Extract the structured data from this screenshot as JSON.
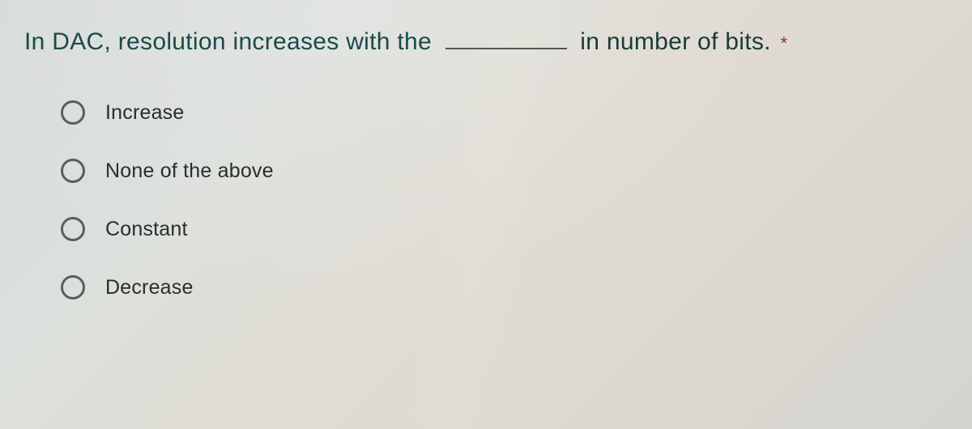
{
  "question": {
    "text_before_blank": "In DAC, resolution increases with the",
    "text_after_blank": "in number of bits.",
    "required_marker": "*",
    "text_color_1": "#1a4a4a",
    "text_color_2": "#1a3a3a",
    "required_color": "#8a3030",
    "font_size": 30,
    "blank_width": 150,
    "blank_underline_color": "#555555"
  },
  "options": [
    {
      "label": "Increase",
      "selected": false
    },
    {
      "label": "None of the above",
      "selected": false
    },
    {
      "label": "Constant",
      "selected": false
    },
    {
      "label": "Decrease",
      "selected": false
    }
  ],
  "styling": {
    "radio_border_color": "#5a5e5a",
    "radio_size": 30,
    "option_font_size": 25,
    "option_text_color": "#2a2e2a",
    "option_spacing": 42,
    "background_gradient": [
      "#d8dcd8",
      "#dce0dc",
      "#e0dcd4",
      "#dcd8d0",
      "#d4d4d0"
    ]
  }
}
